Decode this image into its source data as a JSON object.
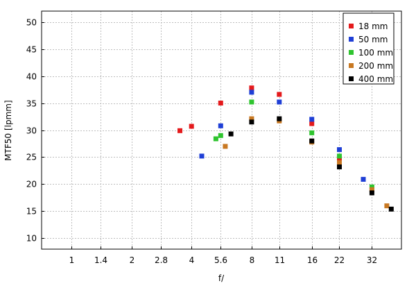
{
  "chart_data": {
    "type": "scatter",
    "xlabel": "f/",
    "ylabel": "MTF50 [lpmm]",
    "x_scale": "log2",
    "xlim": [
      0.71,
      45
    ],
    "ylim": [
      8,
      52
    ],
    "x_ticks": [
      1,
      1.4,
      2,
      2.8,
      4,
      5.6,
      8,
      11,
      16,
      22,
      32
    ],
    "x_tick_labels": [
      "1",
      "1.4",
      "2",
      "2.8",
      "4",
      "5.6",
      "8",
      "11",
      "16",
      "22",
      "32"
    ],
    "y_ticks": [
      10,
      15,
      20,
      25,
      30,
      35,
      40,
      45,
      50
    ],
    "grid": true,
    "legend_position": "top-right",
    "series": [
      {
        "name": "18 mm",
        "color": "#e41a1c",
        "points": [
          [
            3.5,
            29.9
          ],
          [
            4.0,
            30.7
          ],
          [
            5.6,
            35.0
          ],
          [
            8.0,
            37.8
          ],
          [
            11.0,
            36.6
          ],
          [
            16.0,
            31.2
          ],
          [
            22.0,
            24.4
          ]
        ]
      },
      {
        "name": "50 mm",
        "color": "#1f3fd6",
        "points": [
          [
            4.5,
            25.2
          ],
          [
            5.6,
            30.8
          ],
          [
            8.0,
            37.0
          ],
          [
            11.0,
            35.2
          ],
          [
            16.0,
            32.0
          ],
          [
            22.0,
            26.4
          ],
          [
            29.0,
            20.9
          ]
        ]
      },
      {
        "name": "100 mm",
        "color": "#2fc42f",
        "points": [
          [
            5.3,
            28.4
          ],
          [
            5.6,
            29.0
          ],
          [
            8.0,
            35.2
          ],
          [
            16.0,
            29.5
          ],
          [
            22.0,
            25.2
          ],
          [
            32.0,
            19.5
          ]
        ]
      },
      {
        "name": "200 mm",
        "color": "#c87822",
        "points": [
          [
            5.9,
            27.0
          ],
          [
            8.0,
            32.1
          ],
          [
            11.0,
            31.7
          ],
          [
            16.0,
            27.8
          ],
          [
            22.0,
            24.0
          ],
          [
            32.0,
            19.0
          ],
          [
            38.0,
            16.0
          ]
        ]
      },
      {
        "name": "400 mm",
        "color": "#000000",
        "points": [
          [
            6.3,
            29.3
          ],
          [
            8.0,
            31.5
          ],
          [
            11.0,
            32.1
          ],
          [
            16.0,
            28.0
          ],
          [
            22.0,
            23.2
          ],
          [
            32.0,
            18.4
          ],
          [
            40.0,
            15.4
          ]
        ]
      }
    ]
  }
}
